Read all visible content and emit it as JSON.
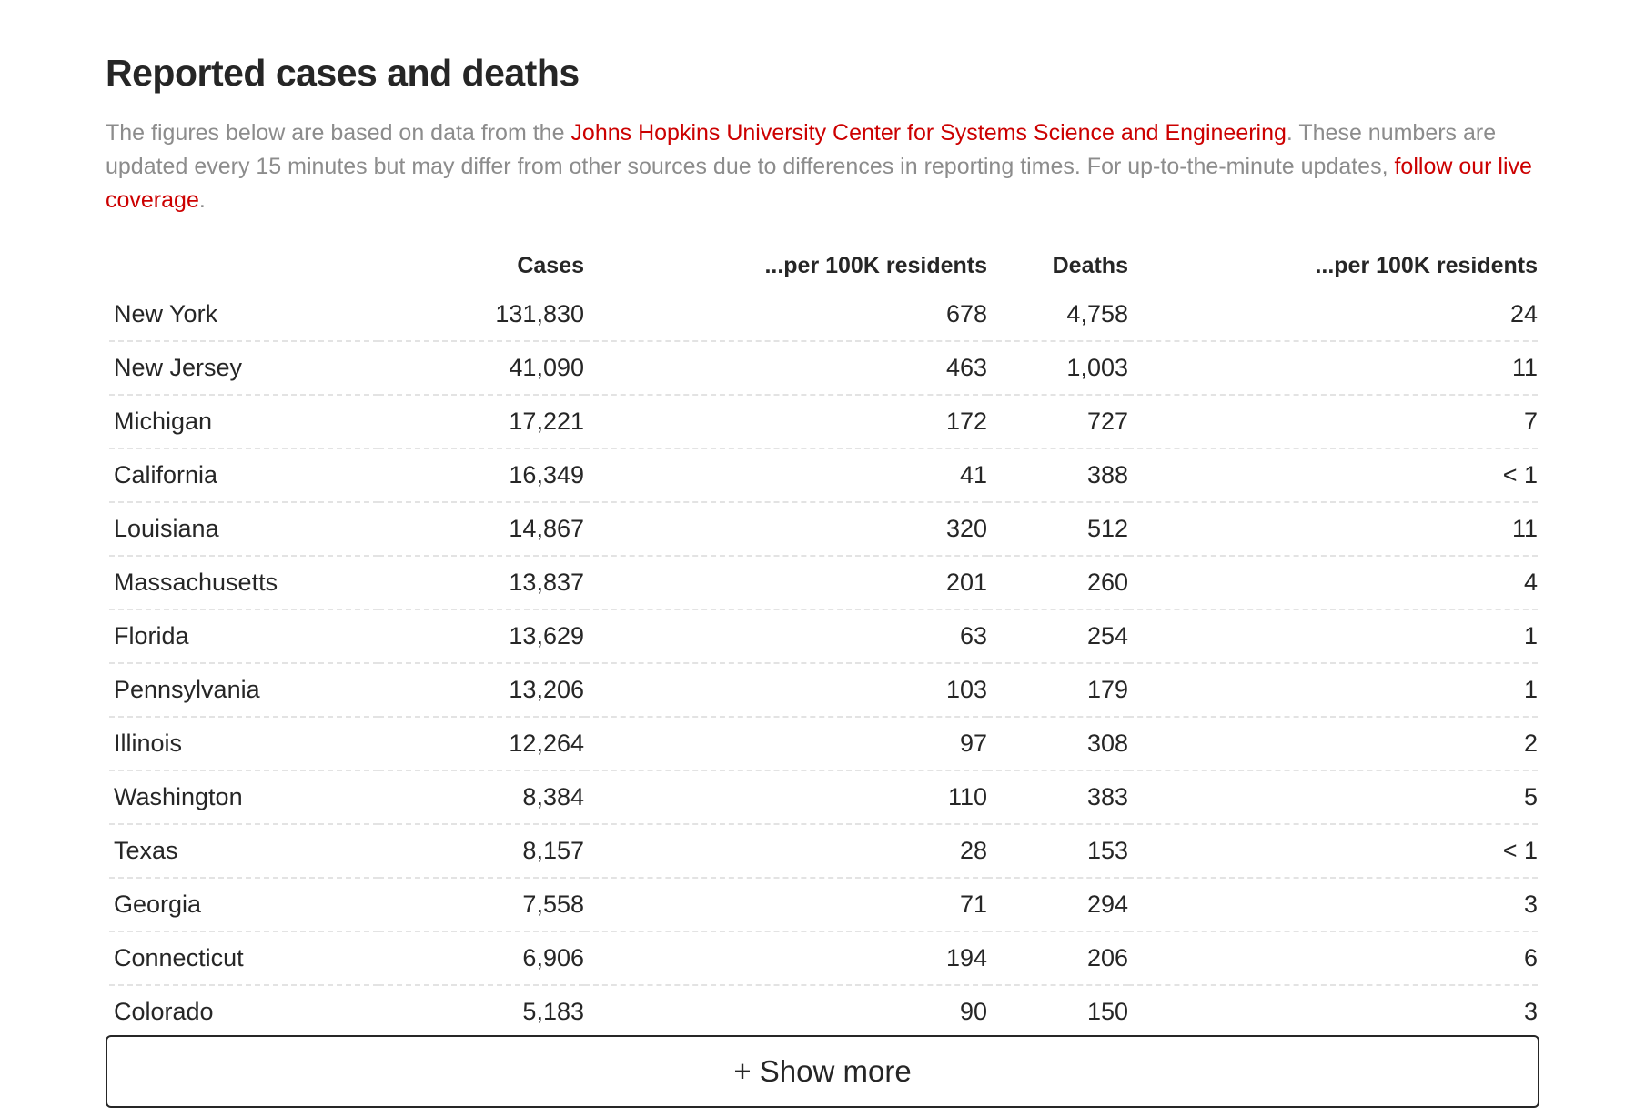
{
  "heading": "Reported cases and deaths",
  "intro": {
    "text_before": "The figures below are based on data from the ",
    "source_link": "Johns Hopkins University Center for Systems Science and Engineering",
    "text_middle": ". These numbers are updated every 15 minutes but may differ from other sources due to differences in reporting times. For up-to-the-minute updates, ",
    "live_link": "follow our live coverage",
    "text_after": "."
  },
  "table": {
    "headers": [
      "",
      "Cases",
      "...per 100K residents",
      "Deaths",
      "...per 100K residents"
    ],
    "rows": [
      [
        "New York",
        "131,830",
        "678",
        "4,758",
        "24"
      ],
      [
        "New Jersey",
        "41,090",
        "463",
        "1,003",
        "11"
      ],
      [
        "Michigan",
        "17,221",
        "172",
        "727",
        "7"
      ],
      [
        "California",
        "16,349",
        "41",
        "388",
        "< 1"
      ],
      [
        "Louisiana",
        "14,867",
        "320",
        "512",
        "11"
      ],
      [
        "Massachusetts",
        "13,837",
        "201",
        "260",
        "4"
      ],
      [
        "Florida",
        "13,629",
        "63",
        "254",
        "1"
      ],
      [
        "Pennsylvania",
        "13,206",
        "103",
        "179",
        "1"
      ],
      [
        "Illinois",
        "12,264",
        "97",
        "308",
        "2"
      ],
      [
        "Washington",
        "8,384",
        "110",
        "383",
        "5"
      ],
      [
        "Texas",
        "8,157",
        "28",
        "153",
        "< 1"
      ],
      [
        "Georgia",
        "7,558",
        "71",
        "294",
        "3"
      ],
      [
        "Connecticut",
        "6,906",
        "194",
        "206",
        "6"
      ],
      [
        "Colorado",
        "5,183",
        "90",
        "150",
        "3"
      ]
    ]
  },
  "show_more_label": "+ Show more",
  "colors": {
    "link": "#cc0000",
    "muted_text": "#8c8c8c",
    "text": "#262626",
    "row_divider": "#e3e3e3"
  }
}
